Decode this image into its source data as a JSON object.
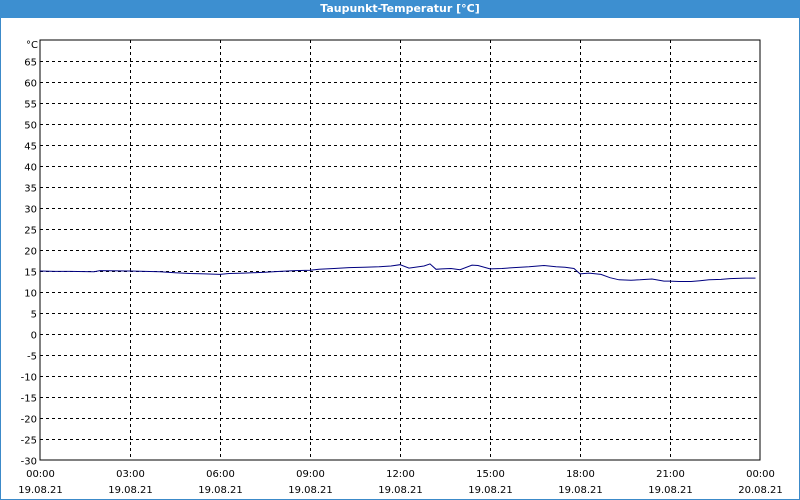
{
  "window": {
    "title": "Taupunkt-Temperatur [°C]"
  },
  "chart_data": {
    "type": "line",
    "title": "Taupunkt-Temperatur [°C]",
    "unit_label": "°C",
    "ylim": [
      -30,
      70
    ],
    "y_ticks": [
      65,
      60,
      55,
      50,
      45,
      40,
      35,
      30,
      25,
      20,
      15,
      10,
      5,
      0,
      -5,
      -10,
      -15,
      -20,
      -25,
      -30
    ],
    "x_range_hours": [
      0,
      24
    ],
    "x_ticks": [
      {
        "time": "00:00",
        "date": "19.08.21"
      },
      {
        "time": "03:00",
        "date": "19.08.21"
      },
      {
        "time": "06:00",
        "date": "19.08.21"
      },
      {
        "time": "09:00",
        "date": "19.08.21"
      },
      {
        "time": "12:00",
        "date": "19.08.21"
      },
      {
        "time": "15:00",
        "date": "19.08.21"
      },
      {
        "time": "18:00",
        "date": "19.08.21"
      },
      {
        "time": "21:00",
        "date": "19.08.21"
      },
      {
        "time": "00:00",
        "date": "20.08.21"
      }
    ],
    "grid": true,
    "line_color": "#000080",
    "series": [
      {
        "x": [
          0,
          0.5,
          1.0,
          1.8,
          2.0,
          3.0,
          3.5,
          4.0,
          4.5,
          5.0,
          5.5,
          6.0,
          6.3,
          6.8,
          7.5,
          8.0,
          8.5,
          9.0,
          9.3,
          9.8,
          10.3,
          10.8,
          11.3,
          11.7,
          12.0,
          12.3,
          12.8,
          13.0,
          13.2,
          13.4,
          13.7,
          14.0,
          14.4,
          14.6,
          15.0,
          15.4,
          15.8,
          16.3,
          16.8,
          17.2,
          17.5,
          17.8,
          18.0,
          18.3,
          18.7,
          19.0,
          19.3,
          19.7,
          20.0,
          20.4,
          20.8,
          21.0,
          21.3,
          21.7,
          22.0,
          22.3,
          22.7,
          23.0,
          23.5,
          23.85
        ],
        "values": [
          15.0,
          14.9,
          14.9,
          14.8,
          15.1,
          15.0,
          14.9,
          14.8,
          14.6,
          14.4,
          14.3,
          14.2,
          14.4,
          14.5,
          14.7,
          14.9,
          15.1,
          15.2,
          15.4,
          15.6,
          15.8,
          15.9,
          16.0,
          16.2,
          16.5,
          15.7,
          16.2,
          16.7,
          15.4,
          15.5,
          15.6,
          15.3,
          16.4,
          16.3,
          15.5,
          15.6,
          15.8,
          16.0,
          16.3,
          16.0,
          15.9,
          15.6,
          14.3,
          14.5,
          14.2,
          13.4,
          12.9,
          12.8,
          12.9,
          13.1,
          12.6,
          12.6,
          12.5,
          12.5,
          12.7,
          12.9,
          13.0,
          13.2,
          13.3,
          13.3
        ]
      }
    ]
  }
}
